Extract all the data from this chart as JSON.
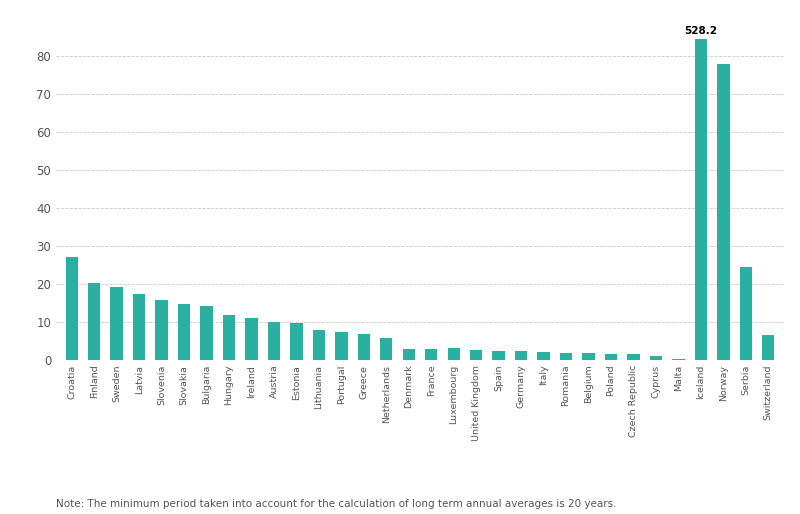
{
  "categories": [
    "Croatia",
    "Finland",
    "Sweden",
    "Latvia",
    "Slovenia",
    "Slovakia",
    "Bulgaria",
    "Hungary",
    "Ireland",
    "Austria",
    "Estonia",
    "Lithuania",
    "Portugal",
    "Greece",
    "Netherlands",
    "Denmark",
    "France",
    "Luxembourg",
    "United Kingdom",
    "Spain",
    "Germany",
    "Italy",
    "Romania",
    "Belgium",
    "Poland",
    "Czech Republic",
    "Cyprus",
    "Malta",
    "Iceland",
    "Norway",
    "Serbia",
    "Switzerland"
  ],
  "values": [
    27.0,
    20.2,
    19.1,
    17.2,
    15.7,
    14.8,
    14.3,
    11.7,
    11.1,
    9.9,
    9.6,
    7.9,
    7.4,
    6.9,
    5.7,
    2.9,
    2.9,
    3.0,
    2.7,
    2.4,
    2.2,
    2.0,
    1.8,
    1.7,
    1.6,
    1.4,
    0.9,
    0.1,
    84.5,
    77.8,
    24.4,
    6.6
  ],
  "bar_color": "#2ab0a0",
  "annotation_country": "Iceland",
  "annotation_value": "528.2",
  "annotation_bar_height": 84.5,
  "ylim": [
    0,
    88
  ],
  "yticks": [
    0,
    10,
    20,
    30,
    40,
    50,
    60,
    70,
    80
  ],
  "note": "Note: The minimum period taken into account for the calculation of long term annual averages is 20 years.",
  "background_color": "#ffffff",
  "grid_color": "#cccccc"
}
